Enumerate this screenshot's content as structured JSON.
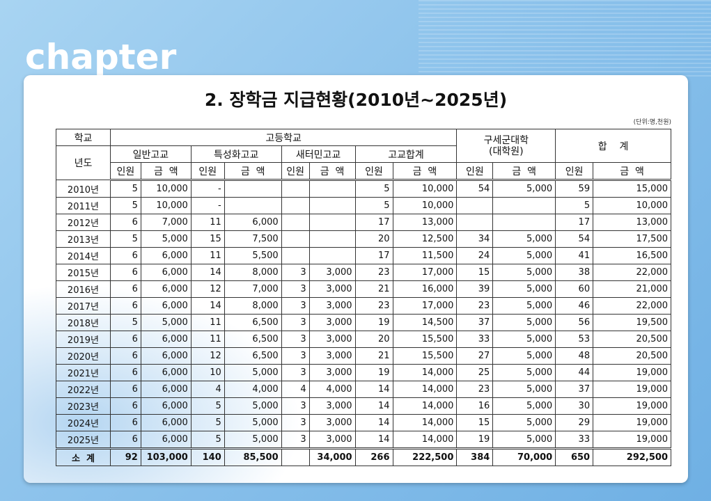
{
  "chapter_label": "chapter",
  "title": "2. 장학금 지급현황(2010년~2025년)",
  "unit": "(단위:명,천원)",
  "header": {
    "corner_top": "학교",
    "corner_bottom": "년도",
    "high_school": "고등학교",
    "general": "일반고교",
    "special": "특성화고교",
    "refugee": "새터민고교",
    "hs_total": "고교합계",
    "university": "구세군대학\n(대학원)",
    "grand_total": "합    계",
    "people": "인원",
    "amount": "금  액"
  },
  "rows": [
    [
      "2010년",
      "5",
      "10,000",
      "-",
      "",
      "",
      "",
      "5",
      "10,000",
      "54",
      "5,000",
      "59",
      "15,000"
    ],
    [
      "2011년",
      "5",
      "10,000",
      "-",
      "",
      "",
      "",
      "5",
      "10,000",
      "",
      "",
      "5",
      "10,000"
    ],
    [
      "2012년",
      "6",
      "7,000",
      "11",
      "6,000",
      "",
      "",
      "17",
      "13,000",
      "",
      "",
      "17",
      "13,000"
    ],
    [
      "2013년",
      "5",
      "5,000",
      "15",
      "7,500",
      "",
      "",
      "20",
      "12,500",
      "34",
      "5,000",
      "54",
      "17,500"
    ],
    [
      "2014년",
      "6",
      "6,000",
      "11",
      "5,500",
      "",
      "",
      "17",
      "11,500",
      "24",
      "5,000",
      "41",
      "16,500"
    ],
    [
      "2015년",
      "6",
      "6,000",
      "14",
      "8,000",
      "3",
      "3,000",
      "23",
      "17,000",
      "15",
      "5,000",
      "38",
      "22,000"
    ],
    [
      "2016년",
      "6",
      "6,000",
      "12",
      "7,000",
      "3",
      "3,000",
      "21",
      "16,000",
      "39",
      "5,000",
      "60",
      "21,000"
    ],
    [
      "2017년",
      "6",
      "6,000",
      "14",
      "8,000",
      "3",
      "3,000",
      "23",
      "17,000",
      "23",
      "5,000",
      "46",
      "22,000"
    ],
    [
      "2018년",
      "5",
      "5,000",
      "11",
      "6,500",
      "3",
      "3,000",
      "19",
      "14,500",
      "37",
      "5,000",
      "56",
      "19,500"
    ],
    [
      "2019년",
      "6",
      "6,000",
      "11",
      "6,500",
      "3",
      "3,000",
      "20",
      "15,500",
      "33",
      "5,000",
      "53",
      "20,500"
    ],
    [
      "2020년",
      "6",
      "6,000",
      "12",
      "6,500",
      "3",
      "3,000",
      "21",
      "15,500",
      "27",
      "5,000",
      "48",
      "20,500"
    ],
    [
      "2021년",
      "6",
      "6,000",
      "10",
      "5,000",
      "3",
      "3,000",
      "19",
      "14,000",
      "25",
      "5,000",
      "44",
      "19,000"
    ],
    [
      "2022년",
      "6",
      "6,000",
      "4",
      "4,000",
      "4",
      "4,000",
      "14",
      "14,000",
      "23",
      "5,000",
      "37",
      "19,000"
    ],
    [
      "2023년",
      "6",
      "6,000",
      "5",
      "5,000",
      "3",
      "3,000",
      "14",
      "14,000",
      "16",
      "5,000",
      "30",
      "19,000"
    ],
    [
      "2024년",
      "6",
      "6,000",
      "5",
      "5,000",
      "3",
      "3,000",
      "14",
      "14,000",
      "15",
      "5,000",
      "29",
      "19,000"
    ],
    [
      "2025년",
      "6",
      "6,000",
      "5",
      "5,000",
      "3",
      "3,000",
      "14",
      "14,000",
      "19",
      "5,000",
      "33",
      "19,000"
    ]
  ],
  "total": [
    "소  계",
    "92",
    "103,000",
    "140",
    "85,500",
    "",
    "34,000",
    "266",
    "222,500",
    "384",
    "70,000",
    "650",
    "292,500"
  ]
}
